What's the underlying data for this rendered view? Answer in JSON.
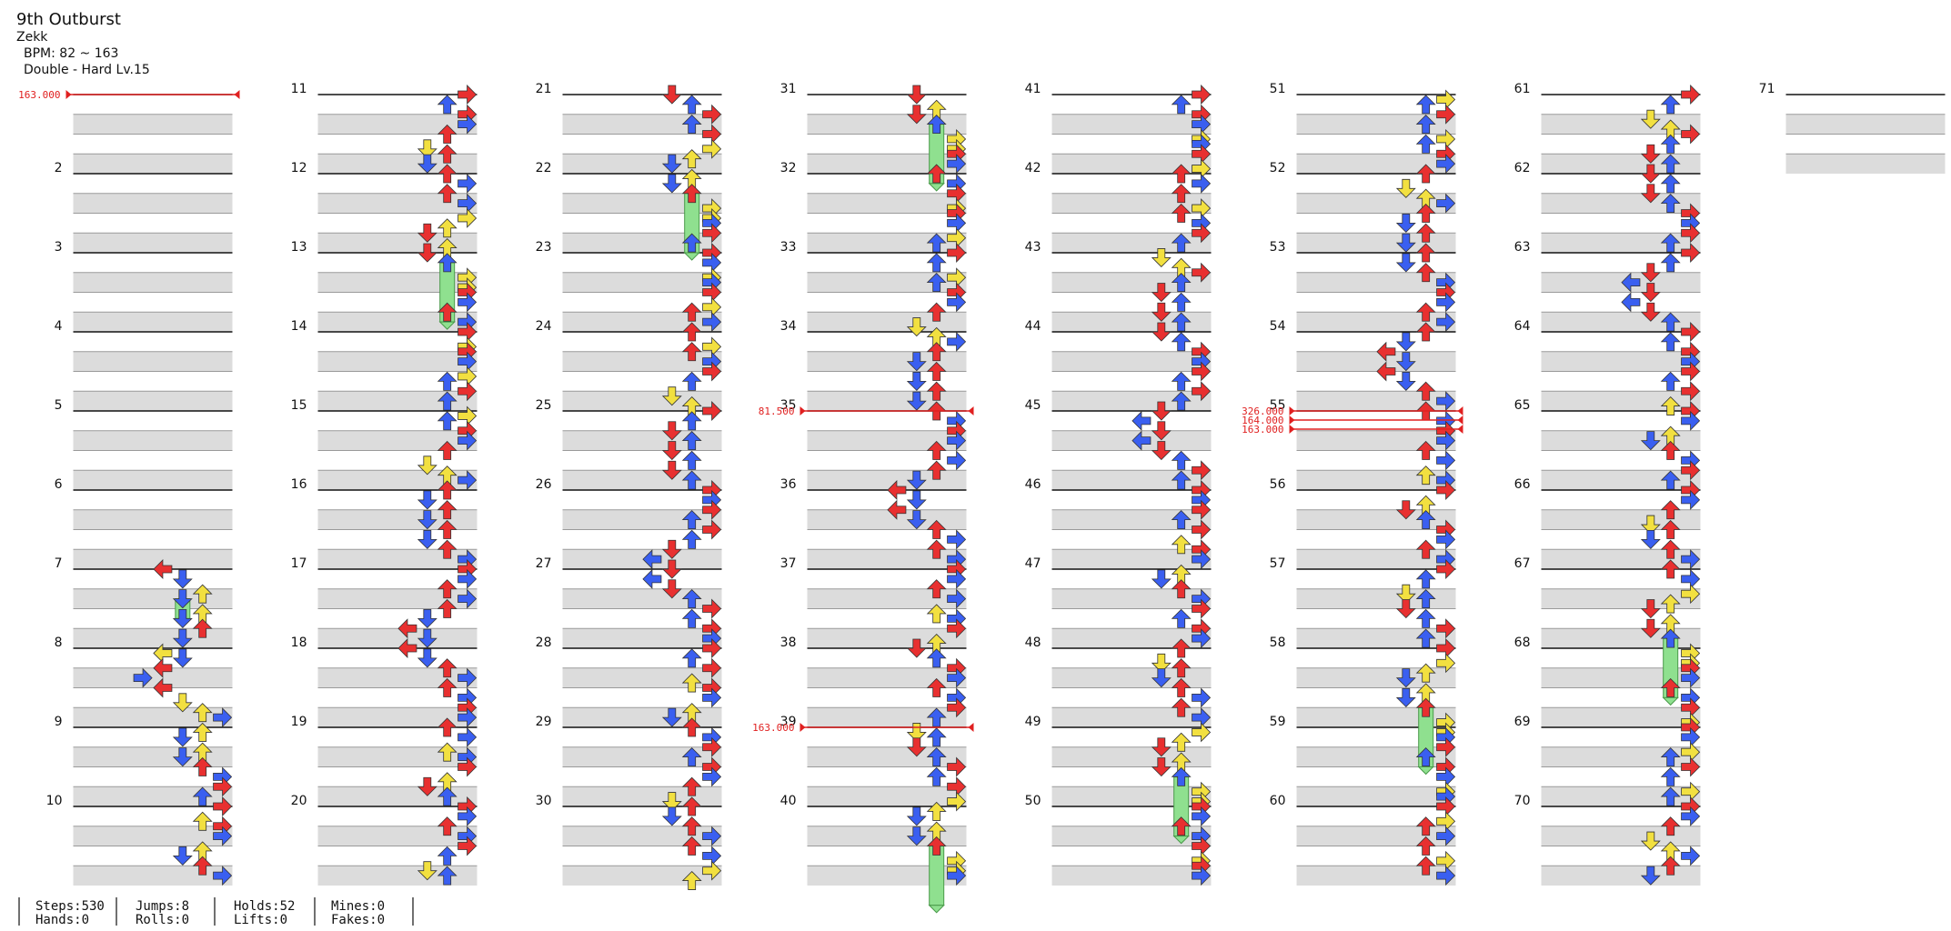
{
  "header": {
    "title": "9th Outburst",
    "artist": "Zekk",
    "bpm": "BPM: 82 ~ 163",
    "difficulty": "Double - Hard Lv.15"
  },
  "columns": [
    {
      "measures": [
        null,
        2,
        3,
        4,
        5,
        6,
        7,
        8,
        9,
        10
      ]
    },
    {
      "measures": [
        11,
        12,
        13,
        14,
        15,
        16,
        17,
        18,
        19,
        20
      ]
    },
    {
      "measures": [
        21,
        22,
        23,
        24,
        25,
        26,
        27,
        28,
        29,
        30
      ]
    },
    {
      "measures": [
        31,
        32,
        33,
        34,
        35,
        36,
        37,
        38,
        39,
        40
      ]
    },
    {
      "measures": [
        41,
        42,
        43,
        44,
        45,
        46,
        47,
        48,
        49,
        50
      ]
    },
    {
      "measures": [
        51,
        52,
        53,
        54,
        55,
        56,
        57,
        58,
        59,
        60
      ]
    },
    {
      "measures": [
        61,
        62,
        63,
        64,
        65,
        66,
        67,
        68,
        69,
        70
      ]
    },
    {
      "measures": [
        71
      ]
    }
  ],
  "bpm_changes": [
    "163.000",
    "81.500",
    "163.000",
    "326.000",
    "164.000",
    "163.000"
  ],
  "stats": [
    [
      "Steps:530",
      "Hands:0"
    ],
    [
      "Jumps:8",
      "Rolls:0"
    ],
    [
      "Holds:52",
      "Lifts:0"
    ],
    [
      "Mines:0",
      "Fakes:0"
    ]
  ]
}
